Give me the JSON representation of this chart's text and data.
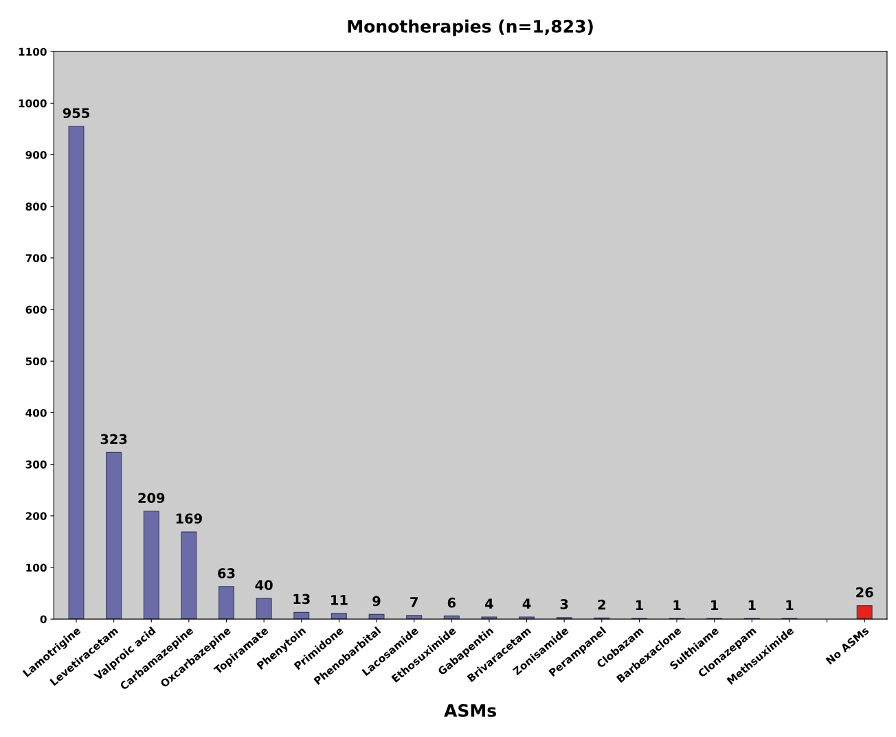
{
  "chart_data": {
    "type": "bar",
    "title": "Monotherapies (n=1,823)",
    "xlabel": "ASMs",
    "categories": [
      "Lamotrigine",
      "Levetiracetam",
      "Valproic acid",
      "Carbamazepine",
      "Oxcarbazepine",
      "Topiramate",
      "Phenytoin",
      "Primidone",
      "Phenobarbital",
      "Lacosamide",
      "Ethosuximide",
      "Gabapentin",
      "Brivaracetam",
      "Zonisamide",
      "Perampanel",
      "Clobazam",
      "Barbexaclone",
      "Sulthiame",
      "Clonazepam",
      "Methsuximide",
      null,
      "No ASMs"
    ],
    "values": [
      955,
      323,
      209,
      169,
      63,
      40,
      13,
      11,
      9,
      7,
      6,
      4,
      4,
      3,
      2,
      1,
      1,
      1,
      1,
      1,
      null,
      26
    ],
    "colors": [
      "#6b6ba8",
      "#6b6ba8",
      "#6b6ba8",
      "#6b6ba8",
      "#6b6ba8",
      "#6b6ba8",
      "#6b6ba8",
      "#6b6ba8",
      "#6b6ba8",
      "#6b6ba8",
      "#6b6ba8",
      "#6b6ba8",
      "#6b6ba8",
      "#6b6ba8",
      "#6b6ba8",
      "#6b6ba8",
      "#6b6ba8",
      "#6b6ba8",
      "#6b6ba8",
      "#6b6ba8",
      "#6b6ba8",
      "#e8231a"
    ],
    "ylim": [
      0,
      1100
    ],
    "yticks": [
      0,
      100,
      200,
      300,
      400,
      500,
      600,
      700,
      800,
      900,
      1000,
      1100
    ],
    "data_labels": true,
    "grid": false,
    "legend": false
  }
}
